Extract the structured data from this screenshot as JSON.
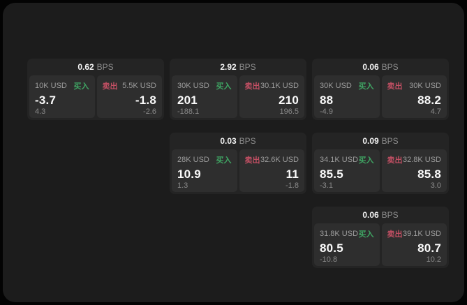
{
  "labels": {
    "buy": "买入",
    "sell": "卖出",
    "bps_unit": "BPS"
  },
  "colors": {
    "background": "#030303",
    "panel": "#1c1c1c",
    "card": "#242424",
    "inner_panel": "#2e2e2e",
    "buy_green": "#3fa463",
    "sell_red": "#c14f63",
    "value_white": "#fafafa",
    "muted_gray": "#8a8a8a"
  },
  "cards": [
    {
      "row": 1,
      "col": 1,
      "bps": "0.62",
      "buy": {
        "amount": "10K USD",
        "value": "-3.7",
        "delta": "4.3"
      },
      "sell": {
        "amount": "5.5K USD",
        "value": "-1.8",
        "delta": "-2.6"
      }
    },
    {
      "row": 1,
      "col": 2,
      "bps": "2.92",
      "buy": {
        "amount": "30K USD",
        "value": "201",
        "delta": "-188.1"
      },
      "sell": {
        "amount": "30.1K USD",
        "value": "210",
        "delta": "196.5"
      }
    },
    {
      "row": 1,
      "col": 3,
      "bps": "0.06",
      "buy": {
        "amount": "30K USD",
        "value": "88",
        "delta": "-4.9"
      },
      "sell": {
        "amount": "30K USD",
        "value": "88.2",
        "delta": "4.7"
      }
    },
    {
      "row": 2,
      "col": 2,
      "bps": "0.03",
      "buy": {
        "amount": "28K USD",
        "value": "10.9",
        "delta": "1.3"
      },
      "sell": {
        "amount": "32.6K USD",
        "value": "11",
        "delta": "-1.8"
      }
    },
    {
      "row": 2,
      "col": 3,
      "bps": "0.09",
      "buy": {
        "amount": "34.1K USD",
        "value": "85.5",
        "delta": "-3.1"
      },
      "sell": {
        "amount": "32.8K USD",
        "value": "85.8",
        "delta": "3.0"
      }
    },
    {
      "row": 3,
      "col": 3,
      "bps": "0.06",
      "buy": {
        "amount": "31.8K USD",
        "value": "80.5",
        "delta": "-10.8"
      },
      "sell": {
        "amount": "39.1K USD",
        "value": "80.7",
        "delta": "10.2"
      }
    }
  ]
}
